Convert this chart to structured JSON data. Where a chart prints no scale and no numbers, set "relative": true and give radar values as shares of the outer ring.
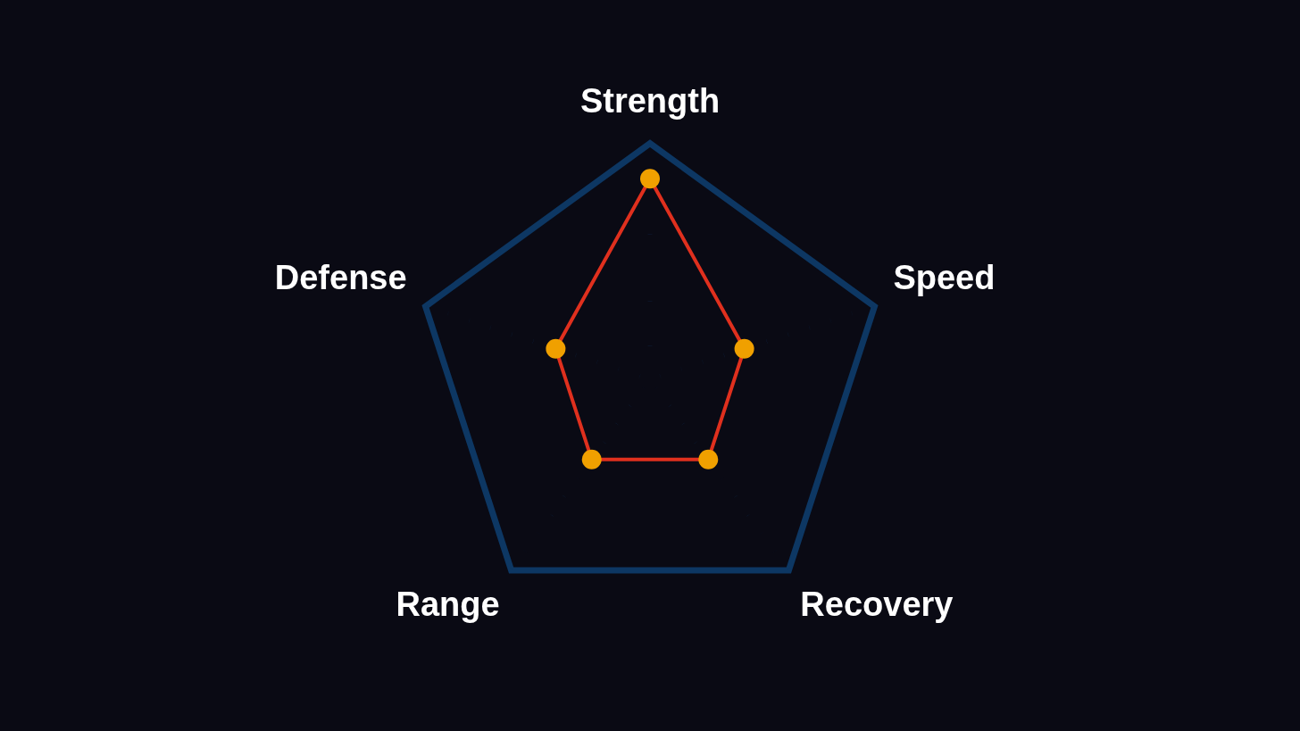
{
  "chart_data": {
    "type": "radar",
    "relative": true,
    "categories": [
      "Strength",
      "Speed",
      "Recovery",
      "Range",
      "Defense"
    ],
    "series": [
      {
        "color": "#e0301e",
        "values": [
          0.85,
          0.42,
          0.42,
          0.42,
          0.42
        ]
      }
    ],
    "grid": true,
    "legend": false,
    "marker": "circle",
    "line_style": "solid"
  }
}
